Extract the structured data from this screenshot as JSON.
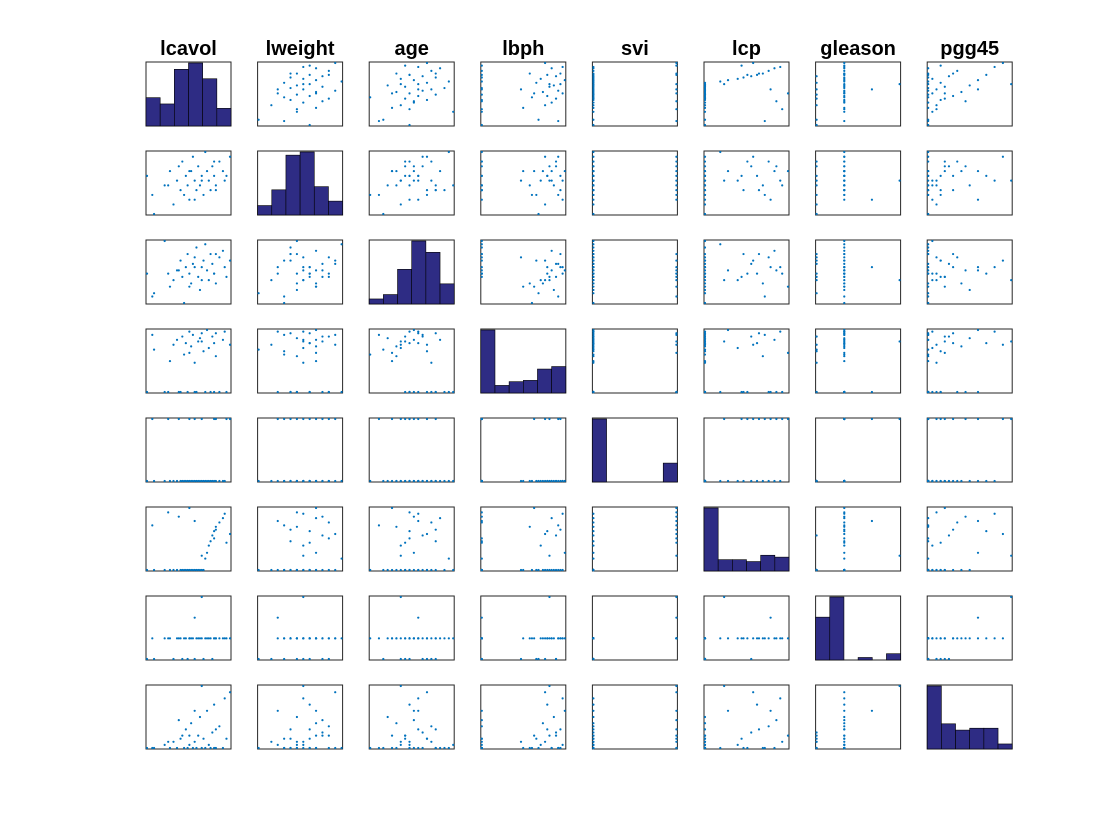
{
  "chart_data": {
    "type": "scatter-matrix",
    "title": "",
    "variables": [
      "lcavol",
      "lweight",
      "age",
      "lbph",
      "svi",
      "lcp",
      "gleason",
      "pgg45"
    ],
    "diagonal": "histogram",
    "off_diagonal": "scatter",
    "colors": {
      "histogram_fill": "#2e2c84",
      "scatter_point": "#0072bd",
      "axes": "#262626"
    },
    "grid": false,
    "legend": "none",
    "observations": {
      "lcavol": [
        -0.9,
        -0.5,
        0.1,
        0.4,
        0.6,
        0.8,
        1.0,
        1.1,
        1.2,
        1.3,
        1.4,
        1.5,
        1.6,
        1.7,
        1.8,
        1.9,
        2.0,
        2.1,
        2.2,
        2.3,
        2.4,
        2.5,
        2.6,
        2.7,
        2.8,
        2.9,
        3.0,
        3.2,
        3.4,
        3.5,
        3.6,
        3.8,
        -0.6,
        0.9,
        1.5,
        2.2,
        2.9,
        3.0,
        1.8,
        0.3
      ],
      "lweight": [
        3.8,
        3.0,
        3.6,
        3.9,
        3.2,
        3.7,
        3.5,
        4.1,
        3.4,
        3.8,
        3.6,
        3.3,
        3.9,
        4.2,
        3.7,
        3.5,
        4.0,
        3.6,
        3.8,
        3.4,
        4.3,
        3.9,
        3.7,
        3.5,
        4.0,
        3.8,
        3.6,
        4.1,
        3.9,
        3.7,
        3.8,
        4.2,
        3.4,
        4.0,
        3.9,
        3.7,
        4.1,
        3.5,
        3.3,
        3.6
      ],
      "age": [
        64,
        58,
        74,
        60,
        62,
        65,
        68,
        63,
        55,
        66,
        70,
        64,
        61,
        67,
        69,
        72,
        63,
        59,
        66,
        68,
        73,
        65,
        62,
        70,
        67,
        64,
        61,
        69,
        71,
        66,
        63,
        68,
        57,
        65,
        60,
        62,
        64,
        70,
        66,
        64
      ],
      "lbph": [
        -1.39,
        1.2,
        -1.39,
        0.5,
        1.5,
        1.8,
        -1.39,
        2.0,
        0.9,
        1.6,
        -1.39,
        2.3,
        1.4,
        2.1,
        0.4,
        -1.39,
        1.7,
        1.9,
        2.2,
        1.1,
        -1.39,
        2.4,
        1.3,
        -1.39,
        2.0,
        1.6,
        0.8,
        -1.39,
        1.8,
        2.3,
        -1.39,
        1.5,
        2.1,
        -1.39,
        1.0,
        1.7,
        -1.39,
        2.2,
        -1.39,
        -1.39
      ],
      "svi": [
        0,
        0,
        0,
        0,
        0,
        0,
        0,
        0,
        0,
        0,
        0,
        0,
        0,
        0,
        0,
        0,
        0,
        0,
        0,
        0,
        0,
        0,
        0,
        0,
        0,
        0,
        0,
        0,
        0,
        0,
        1,
        1,
        1,
        1,
        1,
        1,
        1,
        1,
        1,
        1
      ],
      "lcp": [
        -1.39,
        -1.39,
        -1.39,
        -1.39,
        -1.39,
        -1.39,
        -1.39,
        -1.39,
        -1.39,
        -1.39,
        -1.39,
        -1.39,
        -1.39,
        -1.39,
        -1.39,
        -1.39,
        -1.39,
        -1.39,
        -1.39,
        -1.39,
        -0.6,
        -0.2,
        0.3,
        0.6,
        1.0,
        1.3,
        1.6,
        1.9,
        2.2,
        2.5,
        0.5,
        1.1,
        1.7,
        2.3,
        2.9,
        -0.4,
        0.8,
        1.4,
        2.0,
        2.6
      ],
      "gleason": [
        6,
        6,
        7,
        7,
        6,
        7,
        7,
        6,
        7,
        7,
        6,
        7,
        7,
        7,
        6,
        7,
        7,
        7,
        7,
        6,
        7,
        7,
        7,
        7,
        6,
        7,
        7,
        7,
        7,
        7,
        7,
        7,
        7,
        7,
        7,
        9,
        7,
        7,
        8,
        7
      ],
      "pgg45": [
        0,
        0,
        5,
        0,
        10,
        0,
        15,
        20,
        0,
        30,
        0,
        5,
        40,
        0,
        10,
        0,
        20,
        50,
        0,
        15,
        0,
        60,
        5,
        0,
        25,
        70,
        0,
        35,
        0,
        80,
        15,
        90,
        0,
        45,
        20,
        100,
        0,
        30,
        60,
        10
      ]
    },
    "histograms": {
      "lcavol": [
        0.45,
        0.35,
        0.9,
        1.0,
        0.75,
        0.28
      ],
      "lweight": [
        0.15,
        0.4,
        0.95,
        1.0,
        0.45,
        0.22
      ],
      "age": [
        0.08,
        0.15,
        0.55,
        1.0,
        0.82,
        0.32
      ],
      "lbph": [
        1.0,
        0.12,
        0.18,
        0.2,
        0.38,
        0.42
      ],
      "svi": [
        1.0,
        0.0,
        0.0,
        0.0,
        0.0,
        0.3
      ],
      "lcp": [
        1.0,
        0.18,
        0.18,
        0.15,
        0.25,
        0.22
      ],
      "gleason": [
        0.68,
        1.0,
        0.0,
        0.04,
        0.0,
        0.1
      ],
      "pgg45": [
        1.0,
        0.4,
        0.3,
        0.33,
        0.33,
        0.08
      ]
    }
  }
}
